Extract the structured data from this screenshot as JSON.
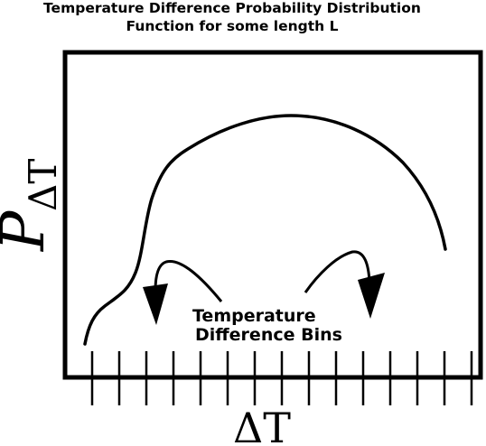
{
  "title": {
    "line1": "Temperature Difference Probability Distribution",
    "line2": "Function for some length L"
  },
  "y_axis": {
    "symbol": "P",
    "subscript": "ΔT"
  },
  "x_axis": {
    "label": "ΔT"
  },
  "annotation": {
    "line1": "Temperature",
    "line2": "Difference Bins"
  },
  "bins": {
    "tick_count": 15
  },
  "colors": {
    "ink": "#000000",
    "background": "#ffffff"
  }
}
